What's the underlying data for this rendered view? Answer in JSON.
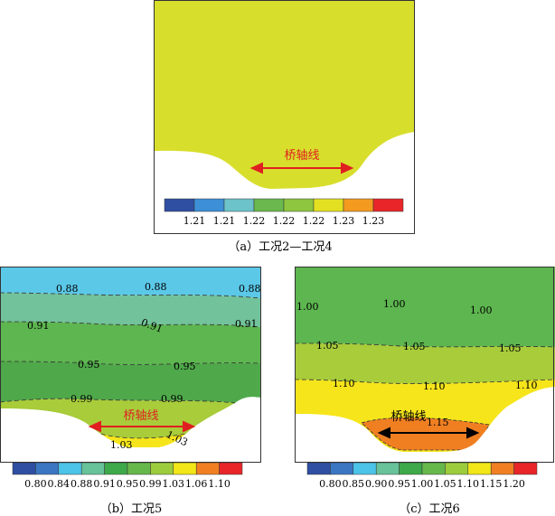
{
  "panels": [
    {
      "id": "a",
      "caption": "（a）工况2—工况4",
      "bridge_label": "桥轴线",
      "contour_labels": [],
      "legend": {
        "colors": [
          "#2f4fa2",
          "#3d8fd6",
          "#6cc3c9",
          "#6ab84e",
          "#8ec63f",
          "#e3e021",
          "#f39a1f",
          "#e8262a"
        ],
        "ticks": [
          "1.21",
          "1.21",
          "1.22",
          "1.22",
          "1.22",
          "1.23",
          "1.23"
        ]
      },
      "zones": [
        "#d8de2c"
      ]
    },
    {
      "id": "b",
      "caption": "（b）工况5",
      "bridge_label": "桥轴线",
      "contour_labels": [
        "0.88",
        "0.88",
        "0.88",
        "0.91",
        "0.91",
        "0.91",
        "0.95",
        "0.95",
        "0.99",
        "0.99",
        "1.03",
        "1.03"
      ],
      "legend": {
        "colors": [
          "#2f4fa2",
          "#3b76c2",
          "#4cc3e8",
          "#68c29a",
          "#3ea94a",
          "#66b84b",
          "#9ccc3c",
          "#f1e617",
          "#f07f22",
          "#e8262a"
        ],
        "ticks": [
          "0.80",
          "0.84",
          "0.88",
          "0.91",
          "0.95",
          "0.99",
          "1.03",
          "1.06",
          "1.10"
        ]
      },
      "zones": [
        "#5bc8e8",
        "#72c29b",
        "#5db64f",
        "#4fa84a",
        "#a8cc3a",
        "#f6e51b"
      ]
    },
    {
      "id": "c",
      "caption": "（c）工况6",
      "bridge_label": "桥轴线",
      "contour_labels": [
        "1.00",
        "1.00",
        "1.00",
        "1.05",
        "1.05",
        "1.05",
        "1.10",
        "1.10",
        "1.10",
        "1.15"
      ],
      "legend": {
        "colors": [
          "#2f4fa2",
          "#3b76c2",
          "#4cc3e8",
          "#68c29a",
          "#3ea94a",
          "#66b84b",
          "#9ccc3c",
          "#f1e617",
          "#f07f22",
          "#e8262a"
        ],
        "ticks": [
          "0.80",
          "0.85",
          "0.90",
          "0.95",
          "1.00",
          "1.05",
          "1.10",
          "1.15",
          "1.20"
        ]
      },
      "zones": [
        "#5db64f",
        "#a8cc3a",
        "#f6e51b",
        "#f07f22"
      ]
    }
  ]
}
